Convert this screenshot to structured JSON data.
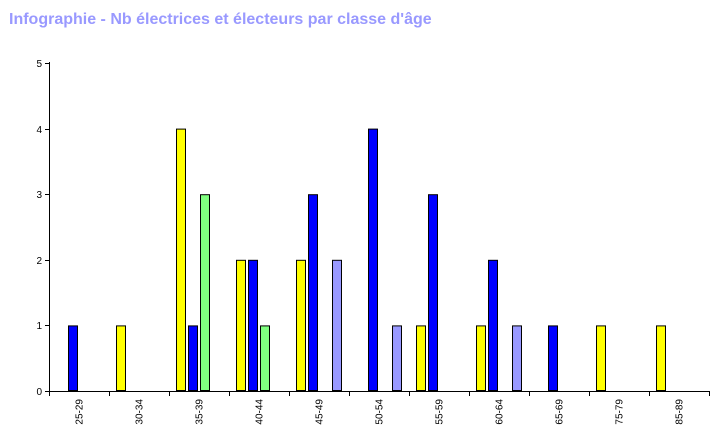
{
  "title": "Infographie - Nb électrices et électeurs par classe d'âge",
  "chart_data": {
    "type": "bar",
    "categories": [
      "25-29",
      "30-34",
      "35-39",
      "40-44",
      "45-49",
      "50-54",
      "55-59",
      "60-64",
      "65-69",
      "75-79",
      "85-89"
    ],
    "series": [
      {
        "color": "#ffff00",
        "values": [
          0,
          1,
          4,
          2,
          2,
          0,
          1,
          1,
          0,
          1,
          1
        ]
      },
      {
        "color": "#0000ff",
        "values": [
          1,
          0,
          1,
          2,
          3,
          4,
          3,
          2,
          1,
          0,
          0
        ]
      },
      {
        "color": "#80ff80",
        "values": [
          0,
          0,
          3,
          1,
          0,
          0,
          0,
          0,
          0,
          0,
          0
        ]
      },
      {
        "color": "#9999ff",
        "values": [
          0,
          0,
          0,
          0,
          2,
          1,
          0,
          1,
          0,
          0,
          0
        ]
      }
    ],
    "ylim": [
      0,
      5
    ],
    "yticks": [
      0,
      1,
      2,
      3,
      4,
      5
    ],
    "grid": false
  }
}
